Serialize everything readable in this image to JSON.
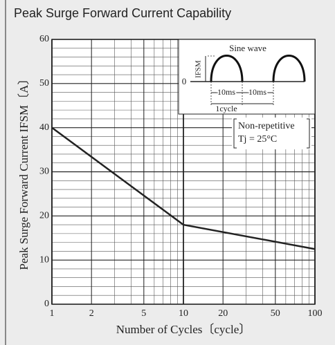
{
  "chart_data": {
    "type": "line",
    "title": "Peak Surge Forward Current Capability",
    "xlabel": "Number of Cycles〔cycle〕",
    "ylabel": "Peak Surge Forward Current IFSM〔A〕",
    "x": [
      1,
      10,
      100
    ],
    "series": [
      {
        "color": "#222222",
        "values": [
          40,
          18,
          12.5
        ]
      }
    ],
    "xlim": [
      1,
      100
    ],
    "xticks": [
      1,
      2,
      5,
      10,
      20,
      50,
      100
    ],
    "xscale": "log",
    "ylim": [
      0,
      60
    ],
    "yticks": [
      0,
      10,
      20,
      30,
      40,
      50,
      60
    ],
    "grid": true,
    "annotations": [
      "Non-repetitive",
      "Tj = 25°C"
    ],
    "inset": {
      "title": "Sine wave",
      "current_label": "IFSM",
      "zero_label": "0",
      "half_period_labels": [
        "10ms",
        "10ms"
      ],
      "period_label": "1cycle"
    }
  }
}
